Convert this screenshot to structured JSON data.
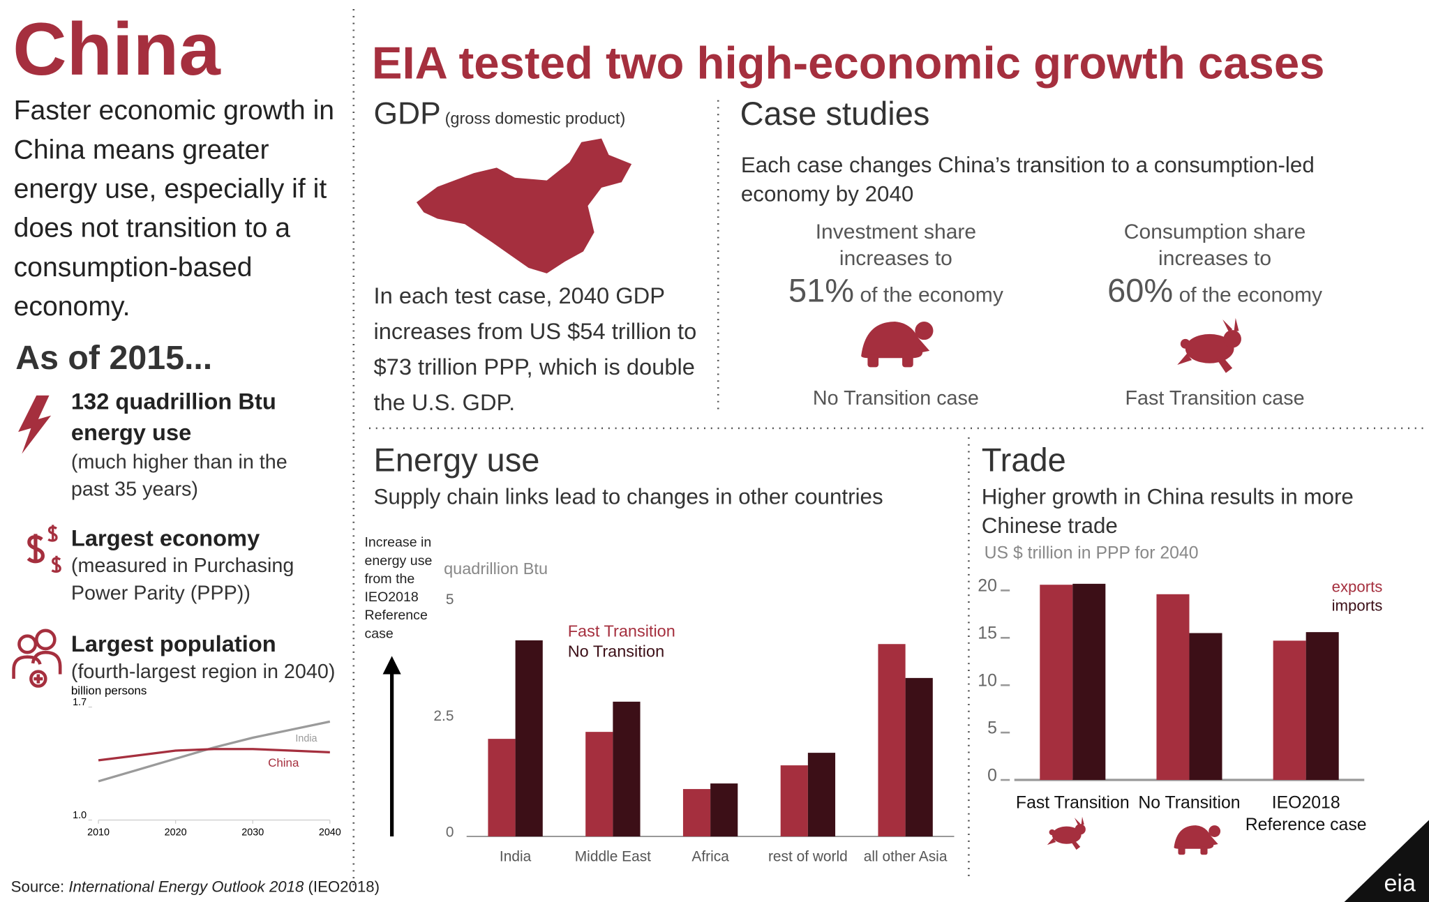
{
  "title": "China",
  "intro": "Faster economic growth in China means greater energy use, especially if it does not transition to a consumption-based economy.",
  "as_of": "As of 2015...",
  "facts": [
    {
      "headline": "132 quadrillion Btu energy use",
      "detail": "(much higher than in the past 35 years)"
    },
    {
      "headline": "Largest economy",
      "detail": "(measured in Purchasing Power Parity (PPP))"
    },
    {
      "headline": "Largest population",
      "detail": "(fourth-largest region in 2040)"
    }
  ],
  "headline": "EIA tested two high-economic growth cases",
  "gdp": {
    "title": "GDP",
    "subtitle": "(gross domestic product)",
    "text": "In each test case, 2040 GDP increases from US $54 trillion to $73 trillion PPP, which is double the U.S. GDP."
  },
  "case_studies": {
    "title": "Case studies",
    "subtitle": "Each case changes China’s transition to a consumption-led economy by 2040",
    "cases": [
      {
        "label": "Investment share increases to",
        "share": "51%",
        "suffix": "of the economy",
        "name": "No Transition case"
      },
      {
        "label": "Consumption share increases to",
        "share": "60%",
        "suffix": "of the economy",
        "name": "Fast Transition case"
      }
    ]
  },
  "energy": {
    "title": "Energy use",
    "subtitle": "Supply chain links lead to changes in other countries",
    "arrow_label": "Increase in energy use from the IEO2018 Reference case"
  },
  "trade": {
    "title": "Trade",
    "subtitle": "Higher growth in China results in more Chinese trade"
  },
  "source": {
    "prefix": "Source: ",
    "title": "International Energy Outlook 2018",
    "suffix": " (IEO2018)"
  },
  "logo": "eia",
  "chart_data": [
    {
      "type": "line",
      "ylabel": "billion persons",
      "x": [
        2010,
        2015,
        2020,
        2025,
        2030,
        2035,
        2040
      ],
      "series": [
        {
          "name": "India",
          "color": "#9a9a9a",
          "values": [
            1.24,
            1.31,
            1.38,
            1.45,
            1.51,
            1.56,
            1.61
          ]
        },
        {
          "name": "China",
          "color": "#a52f3e",
          "values": [
            1.37,
            1.4,
            1.43,
            1.44,
            1.44,
            1.43,
            1.42
          ]
        }
      ],
      "xlim": [
        2010,
        2040
      ],
      "xticks": [
        2010,
        2020,
        2030,
        2040
      ],
      "ylim": [
        1,
        1.7
      ],
      "yticks": [
        {
          "value": 1,
          "label": "1.0"
        },
        {
          "value": 1.7,
          "label": "1.7"
        }
      ]
    },
    {
      "type": "bar",
      "ylabel": "quadrillion Btu",
      "categories": [
        "India",
        "Middle East",
        "Africa",
        "rest of world",
        "all other Asia"
      ],
      "series": [
        {
          "name": "Fast Transition",
          "color": "#a52f3e",
          "values": [
            2.1,
            2.25,
            1.02,
            1.53,
            4.14
          ]
        },
        {
          "name": "No Transition",
          "color": "#3c0f17",
          "values": [
            4.22,
            2.9,
            1.14,
            1.8,
            3.41
          ]
        }
      ],
      "ylim": [
        0,
        5
      ],
      "yticks": [
        0,
        2.5,
        5
      ]
    },
    {
      "type": "bar",
      "ylabel": "US $ trillion in PPP for 2040",
      "categories": [
        "Fast Transition",
        "No Transition",
        "IEO2018 Reference case"
      ],
      "series": [
        {
          "name": "exports",
          "color": "#a52f3e",
          "values": [
            20.6,
            19.6,
            14.7
          ]
        },
        {
          "name": "imports",
          "color": "#3c0f17",
          "values": [
            20.7,
            15.5,
            15.6
          ]
        }
      ],
      "ylim": [
        0,
        21
      ],
      "yticks": [
        0,
        5,
        10,
        15,
        20
      ]
    }
  ]
}
